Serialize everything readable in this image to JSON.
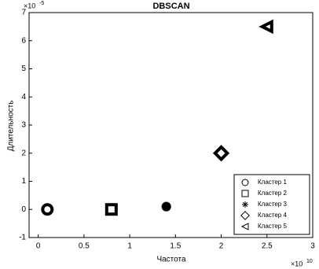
{
  "chart_data": {
    "type": "scatter",
    "title": "DBSCAN",
    "x_label": "Частота",
    "y_label": "Длительность",
    "x_multiplier": {
      "base": "×10",
      "exponent": "10"
    },
    "y_multiplier": {
      "base": "×10",
      "exponent": "-5"
    },
    "xlim": [
      -0.1,
      3
    ],
    "ylim": [
      -1,
      7
    ],
    "xticks": [
      0,
      0.5,
      1,
      1.5,
      2,
      2.5,
      3
    ],
    "yticks": [
      -1,
      0,
      1,
      2,
      3,
      4,
      5,
      6,
      7
    ],
    "legend": "lower right",
    "series": [
      {
        "name": "Кластер 1",
        "color": "#000000",
        "marker": "o",
        "x": [
          0.1
        ],
        "values": [
          0
        ]
      },
      {
        "name": "Кластер 2",
        "color": "#000000",
        "marker": "s",
        "x": [
          0.8
        ],
        "values": [
          0
        ]
      },
      {
        "name": "Кластер 3",
        "color": "#000000",
        "marker": "*",
        "x": [
          1.4
        ],
        "values": [
          0.1
        ]
      },
      {
        "name": "Кластер 4",
        "color": "#000000",
        "marker": "d",
        "x": [
          2.0
        ],
        "values": [
          2
        ]
      },
      {
        "name": "Кластер 5",
        "color": "#000000",
        "marker": "<",
        "x": [
          2.5
        ],
        "values": [
          6.5
        ]
      }
    ]
  }
}
